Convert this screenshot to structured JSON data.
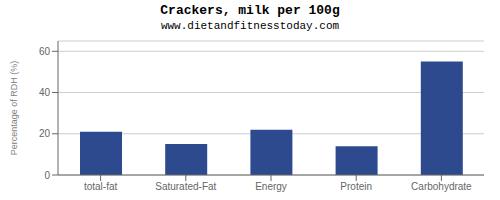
{
  "chart_data": {
    "type": "bar",
    "title": "Crackers, milk per 100g",
    "subtitle": "www.dietandfitnesstoday.com",
    "categories": [
      "total-fat",
      "Saturated-Fat",
      "Energy",
      "Protein",
      "Carbohydrate"
    ],
    "values": [
      21,
      15,
      22,
      14,
      55
    ],
    "color": "#2e4a8e",
    "ylabel": "Percentage of RDH (%)",
    "ylim": [
      0,
      65
    ],
    "yticks": [
      0,
      20,
      40,
      60
    ],
    "grid": true
  }
}
